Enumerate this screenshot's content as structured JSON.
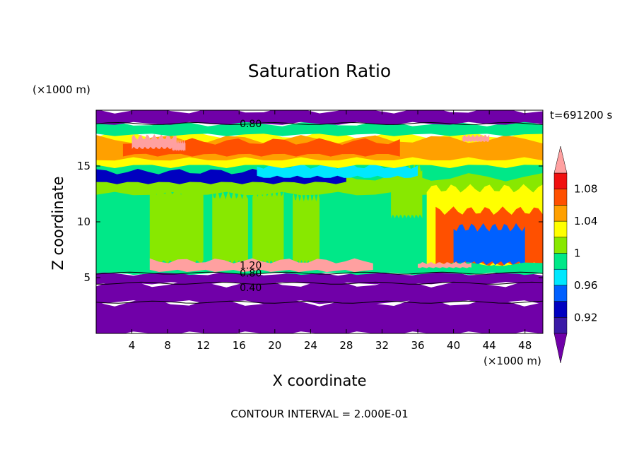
{
  "chart_data": {
    "type": "contour",
    "title": "Saturation Ratio",
    "xlabel": "X coordinate",
    "ylabel": "Z coordinate",
    "x_unit": "(×1000 m)",
    "y_unit": "(×1000 m)",
    "time_label": "t=691200 s",
    "footer": "CONTOUR INTERVAL = 2.000E-01",
    "xlim": [
      0,
      50
    ],
    "ylim": [
      0,
      20
    ],
    "xticks": [
      4,
      8,
      12,
      16,
      20,
      24,
      28,
      32,
      36,
      40,
      44,
      48
    ],
    "yticks": [
      5,
      10,
      15
    ],
    "colorbar": {
      "tick_labels": [
        "0.92",
        "0.96",
        "1",
        "1.04",
        "1.08"
      ],
      "tick_values": [
        0.92,
        0.96,
        1.0,
        1.04,
        1.08
      ],
      "levels": [
        0.9,
        0.92,
        0.94,
        0.96,
        0.98,
        1.0,
        1.02,
        1.04,
        1.06,
        1.08,
        1.1
      ],
      "colors": [
        "#7000a8",
        "#3a1aa6",
        "#0000c0",
        "#0060ff",
        "#00e8ff",
        "#00e888",
        "#88e800",
        "#ffff00",
        "#ffa000",
        "#ff5000",
        "#f01010",
        "#ffa0a0"
      ],
      "extend": "both"
    },
    "contour_labels": [
      {
        "text": "0.80",
        "x": 17.3,
        "z": 18.8
      },
      {
        "text": "1.20",
        "x": 17.3,
        "z": 6.1
      },
      {
        "text": "0.80",
        "x": 17.3,
        "z": 5.4
      },
      {
        "text": "0.40",
        "x": 17.3,
        "z": 4.1
      }
    ],
    "regions": [
      {
        "zmin": 0,
        "zmax": 2.8,
        "xmin": 0,
        "xmax": 50,
        "color": "#7000a8"
      },
      {
        "zmin": 2.8,
        "zmax": 4.5,
        "xmin": 0,
        "xmax": 50,
        "color": "#7000a8"
      },
      {
        "zmin": 4.5,
        "zmax": 5.4,
        "xmin": 0,
        "xmax": 50,
        "color": "#7000a8"
      },
      {
        "zmin": 5.4,
        "zmax": 16.0,
        "xmin": 0,
        "xmax": 50,
        "color": "#00e888"
      },
      {
        "zmin": 6.4,
        "zmax": 12.8,
        "xmin": 6,
        "xmax": 12,
        "color": "#88e800"
      },
      {
        "zmin": 6.4,
        "zmax": 12.4,
        "xmin": 13,
        "xmax": 17,
        "color": "#88e800"
      },
      {
        "zmin": 6.4,
        "zmax": 12.6,
        "xmin": 17.5,
        "xmax": 21,
        "color": "#88e800"
      },
      {
        "zmin": 6.4,
        "zmax": 12.2,
        "xmin": 22,
        "xmax": 25,
        "color": "#88e800"
      },
      {
        "zmin": 10.5,
        "zmax": 14.8,
        "xmin": 33,
        "xmax": 36.5,
        "color": "#88e800"
      },
      {
        "zmin": 12.5,
        "zmax": 14.0,
        "xmin": 0,
        "xmax": 50,
        "color": "#88e800"
      },
      {
        "zmin": 13.5,
        "zmax": 14.5,
        "xmin": 0,
        "xmax": 28,
        "color": "#0000c0"
      },
      {
        "zmin": 14.0,
        "zmax": 15.0,
        "xmin": 18,
        "xmax": 36,
        "color": "#00e8ff"
      },
      {
        "zmin": 15.0,
        "zmax": 17.8,
        "xmin": 0,
        "xmax": 50,
        "color": "#ffff00"
      },
      {
        "zmin": 15.6,
        "zmax": 17.4,
        "xmin": 0,
        "xmax": 50,
        "color": "#ffa000"
      },
      {
        "zmin": 16.0,
        "zmax": 17.2,
        "xmin": 3,
        "xmax": 34,
        "color": "#ff5000"
      },
      {
        "zmin": 16.6,
        "zmax": 17.6,
        "xmin": 4,
        "xmax": 9,
        "color": "#ffa0a0"
      },
      {
        "zmin": 16.4,
        "zmax": 17.2,
        "xmin": 8.5,
        "xmax": 10,
        "color": "#ffa0a0"
      },
      {
        "zmin": 17.2,
        "zmax": 17.7,
        "xmin": 41,
        "xmax": 44,
        "color": "#ffa0a0"
      },
      {
        "zmin": 17.8,
        "zmax": 18.8,
        "xmin": 0,
        "xmax": 50,
        "color": "#00e888"
      },
      {
        "zmin": 18.8,
        "zmax": 20.0,
        "xmin": 0,
        "xmax": 50,
        "color": "#7000a8"
      },
      {
        "zmin": 6.0,
        "zmax": 13.0,
        "xmin": 37,
        "xmax": 50,
        "color": "#ffff00"
      },
      {
        "zmin": 6.2,
        "zmax": 11.0,
        "xmin": 38,
        "xmax": 50,
        "color": "#ff5000"
      },
      {
        "zmin": 6.3,
        "zmax": 9.5,
        "xmin": 40,
        "xmax": 48,
        "color": "#0060ff"
      },
      {
        "zmin": 5.4,
        "zmax": 6.2,
        "xmin": 0,
        "xmax": 50,
        "color": "#00e888"
      },
      {
        "zmin": 5.6,
        "zmax": 6.5,
        "xmin": 6,
        "xmax": 31,
        "color": "#ffa0a0"
      },
      {
        "zmin": 5.9,
        "zmax": 6.3,
        "xmin": 36,
        "xmax": 42,
        "color": "#ffa0a0"
      }
    ]
  }
}
